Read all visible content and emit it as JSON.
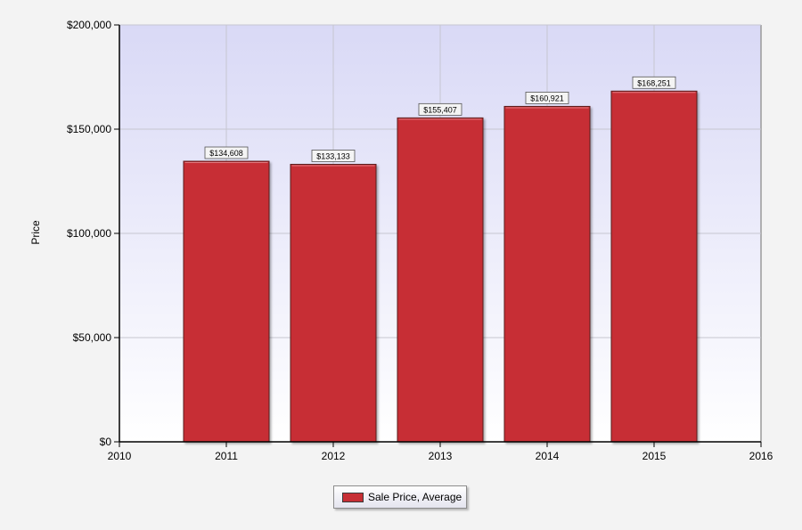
{
  "chart_data": {
    "type": "bar",
    "title": "",
    "xlabel": "",
    "ylabel": "Price",
    "x_ticks": [
      "2010",
      "2011",
      "2012",
      "2013",
      "2014",
      "2015",
      "2016"
    ],
    "x_range": [
      2010,
      2016
    ],
    "y_ticks": [
      "$0",
      "$50,000",
      "$100,000",
      "$150,000",
      "$200,000"
    ],
    "ylim": [
      0,
      200000
    ],
    "grid": true,
    "legend_position": "bottom-center",
    "series": [
      {
        "name": "Sale Price, Average",
        "color": "#c72f35",
        "x": [
          2011,
          2012,
          2013,
          2014,
          2015
        ],
        "values": [
          134608,
          133133,
          155407,
          160921,
          168251
        ],
        "labels": [
          "$134,608",
          "$133,133",
          "$155,407",
          "$160,921",
          "$168,251"
        ]
      }
    ]
  },
  "legend": {
    "label": "Sale Price, Average",
    "color": "#c72f35"
  }
}
